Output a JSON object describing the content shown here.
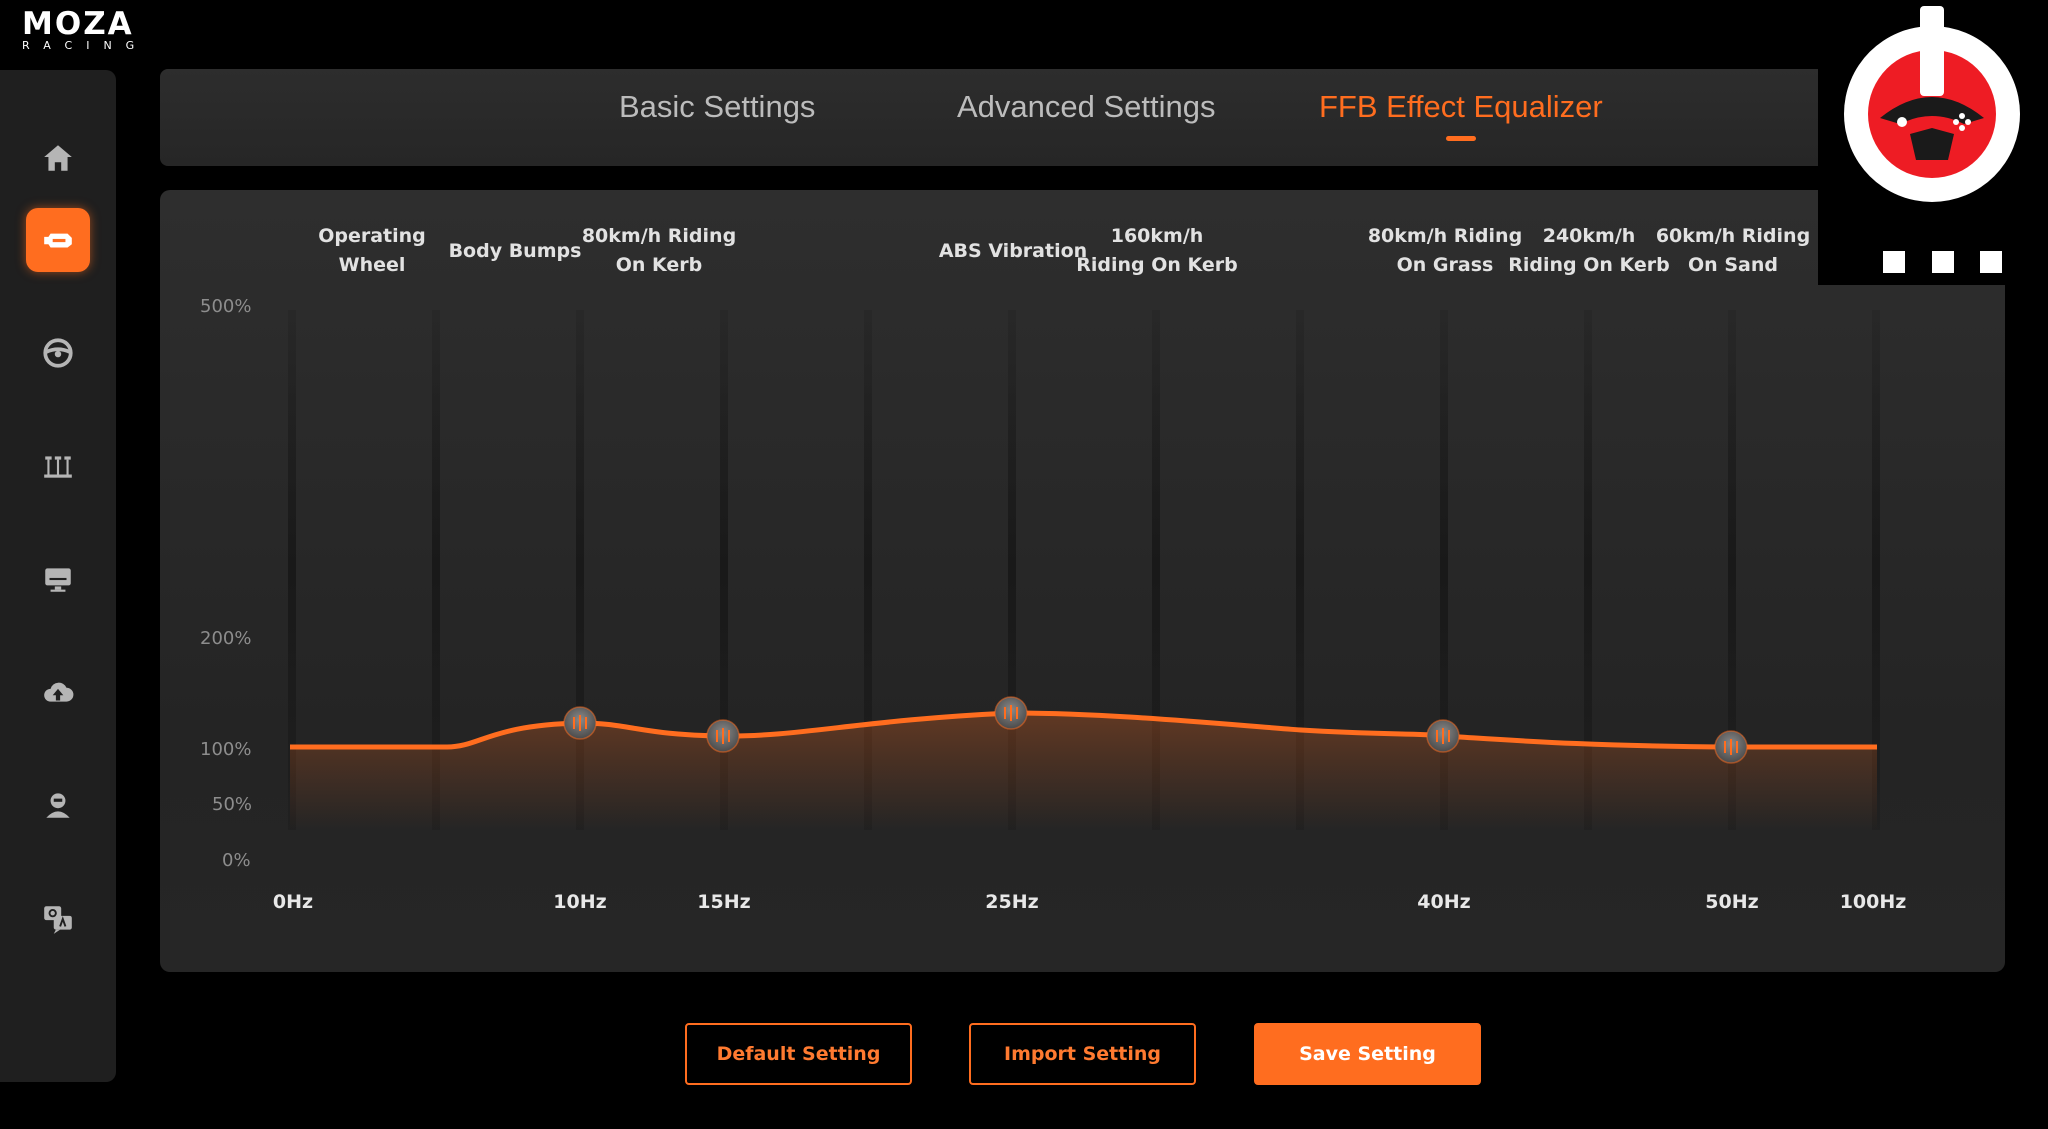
{
  "app": {
    "brand": "MOZA",
    "brand_sub": "RACING"
  },
  "sidebar": {
    "items": [
      {
        "name": "home",
        "icon": "home-icon"
      },
      {
        "name": "motor",
        "icon": "motor-icon",
        "active": true
      },
      {
        "name": "steering-wheel",
        "icon": "steering-wheel-icon"
      },
      {
        "name": "pedals",
        "icon": "pedals-icon"
      },
      {
        "name": "dashboard",
        "icon": "dashboard-icon"
      },
      {
        "name": "cloud-upload",
        "icon": "cloud-upload-icon"
      },
      {
        "name": "account",
        "icon": "account-icon"
      },
      {
        "name": "qa",
        "icon": "qa-icon"
      }
    ]
  },
  "tabs": [
    {
      "label": "Basic Settings",
      "active": false
    },
    {
      "label": "Advanced Settings",
      "active": false
    },
    {
      "label": "FFB Effect Equalizer",
      "active": true
    }
  ],
  "equalizer": {
    "effect_labels": [
      {
        "lines": [
          "Operating",
          "Wheel"
        ]
      },
      {
        "lines": [
          "Body Bumps"
        ]
      },
      {
        "lines": [
          "80km/h Riding",
          "On Kerb"
        ]
      },
      {
        "lines": [
          "ABS Vibration"
        ]
      },
      {
        "lines": [
          "160km/h",
          "Riding On Kerb"
        ]
      },
      {
        "lines": [
          "80km/h Riding",
          "On Grass"
        ]
      },
      {
        "lines": [
          "240km/h",
          "Riding On Kerb"
        ]
      },
      {
        "lines": [
          "60km/h Riding",
          "On Sand"
        ]
      }
    ],
    "y_labels": [
      "500%",
      "200%",
      "100%",
      "50%",
      "0%"
    ],
    "x_labels": [
      "0Hz",
      "10Hz",
      "15Hz",
      "25Hz",
      "40Hz",
      "50Hz",
      "100Hz"
    ],
    "accent": "#ff6d1f",
    "handle_values_percent": [
      122,
      111,
      130,
      110,
      100
    ]
  },
  "buttons": {
    "default": "Default Setting",
    "import": "Import Setting",
    "save": "Save Setting"
  },
  "badge": {
    "icon": "power-steering-badge-icon"
  }
}
